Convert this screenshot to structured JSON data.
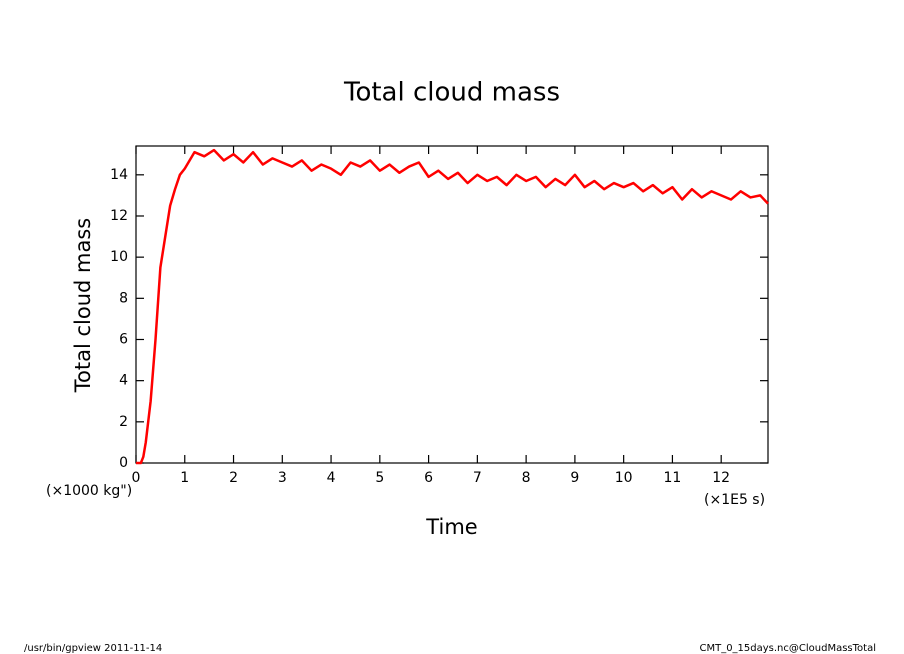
{
  "chart_data": {
    "type": "line",
    "title": "Total cloud mass",
    "ylabel": "Total cloud mass",
    "xlabel": "Time",
    "y_unit": "(×1000 kg\")",
    "x_unit": "(×1E5 s)",
    "footer_left": "/usr/bin/gpview  2011-11-14",
    "footer_right": "CMT_0_15days.nc@CloudMassTotal",
    "xlim": [
      0,
      12.96
    ],
    "ylim": [
      0,
      15.4
    ],
    "xticks": [
      0,
      1,
      2,
      3,
      4,
      5,
      6,
      7,
      8,
      9,
      10,
      11,
      12
    ],
    "yticks": [
      0,
      2,
      4,
      6,
      8,
      10,
      12,
      14
    ],
    "series": [
      {
        "color": "#ff0000",
        "x": [
          0,
          0.1,
          0.15,
          0.2,
          0.3,
          0.4,
          0.5,
          0.6,
          0.7,
          0.8,
          0.9,
          1.0,
          1.2,
          1.4,
          1.6,
          1.8,
          2.0,
          2.2,
          2.4,
          2.6,
          2.8,
          3.0,
          3.2,
          3.4,
          3.6,
          3.8,
          4.0,
          4.2,
          4.4,
          4.6,
          4.8,
          5.0,
          5.2,
          5.4,
          5.6,
          5.8,
          6.0,
          6.2,
          6.4,
          6.6,
          6.8,
          7.0,
          7.2,
          7.4,
          7.6,
          7.8,
          8.0,
          8.2,
          8.4,
          8.6,
          8.8,
          9.0,
          9.2,
          9.4,
          9.6,
          9.8,
          10.0,
          10.2,
          10.4,
          10.6,
          10.8,
          11.0,
          11.2,
          11.4,
          11.6,
          11.8,
          12.0,
          12.2,
          12.4,
          12.6,
          12.8,
          12.96
        ],
        "values": [
          0,
          0,
          0.3,
          1,
          3,
          6,
          9.5,
          11,
          12.5,
          13.3,
          14.0,
          14.3,
          15.1,
          14.9,
          15.2,
          14.7,
          15.0,
          14.6,
          15.1,
          14.5,
          14.8,
          14.6,
          14.4,
          14.7,
          14.2,
          14.5,
          14.3,
          14.0,
          14.6,
          14.4,
          14.7,
          14.2,
          14.5,
          14.1,
          14.4,
          14.6,
          13.9,
          14.2,
          13.8,
          14.1,
          13.6,
          14.0,
          13.7,
          13.9,
          13.5,
          14.0,
          13.7,
          13.9,
          13.4,
          13.8,
          13.5,
          14.0,
          13.4,
          13.7,
          13.3,
          13.6,
          13.4,
          13.6,
          13.2,
          13.5,
          13.1,
          13.4,
          12.8,
          13.3,
          12.9,
          13.2,
          13.0,
          12.8,
          13.2,
          12.9,
          13.0,
          12.6
        ]
      }
    ]
  }
}
